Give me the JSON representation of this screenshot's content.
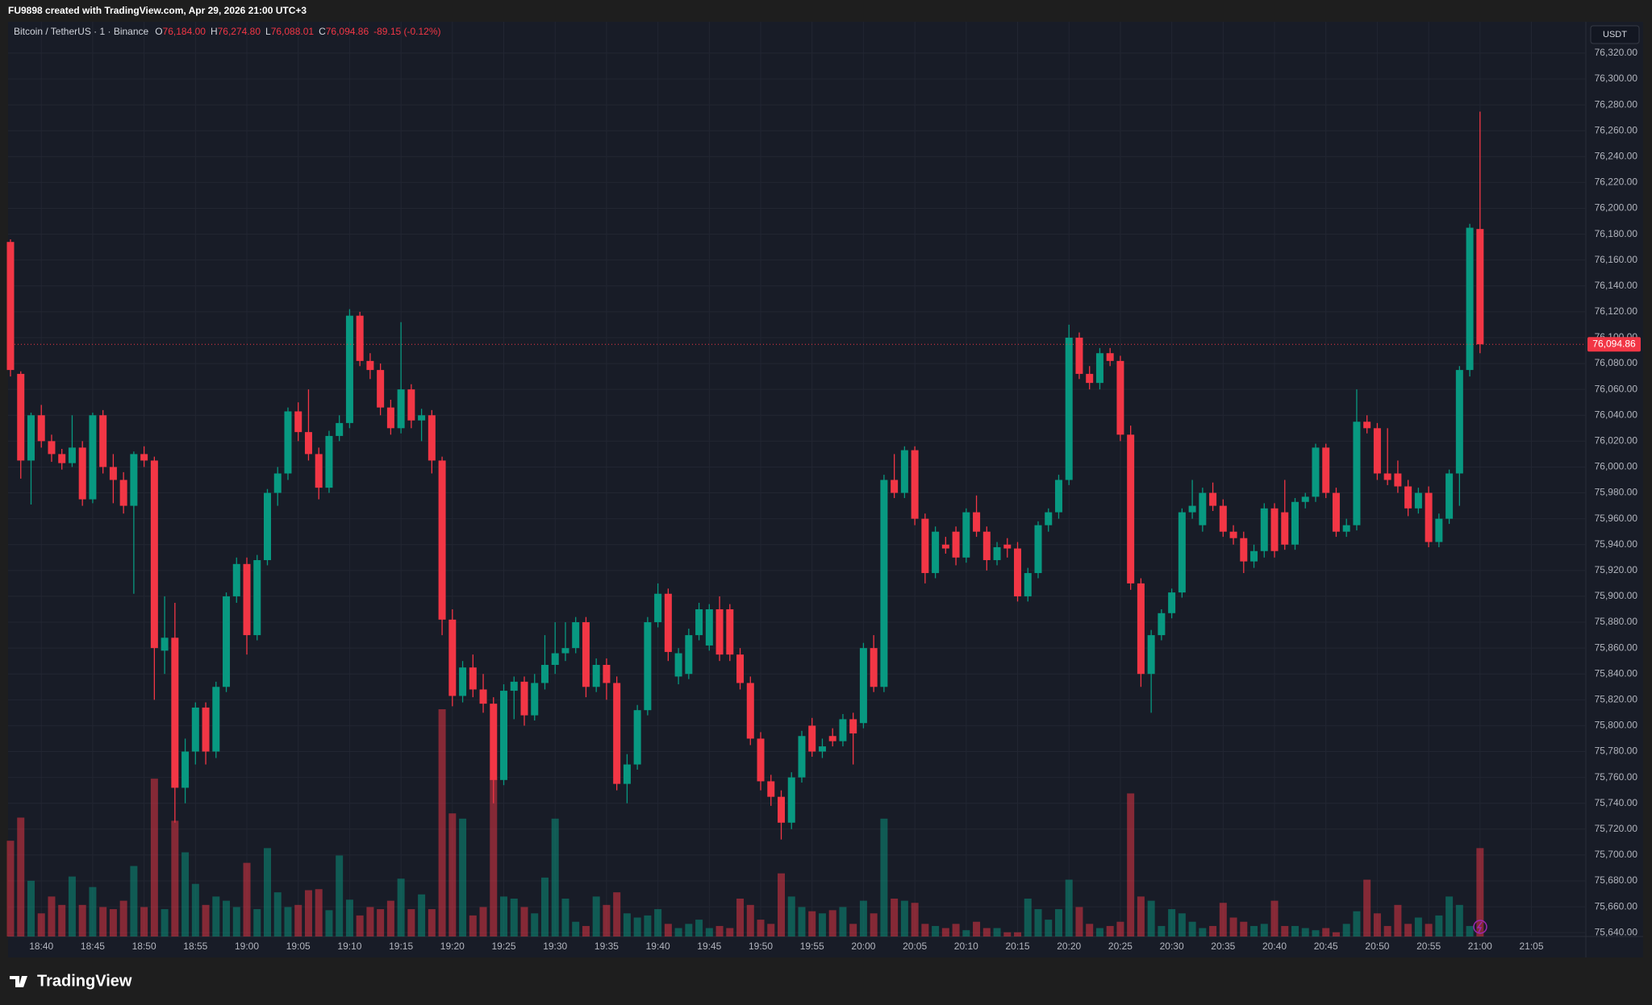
{
  "header": "FU9898 created with TradingView.com, Apr 29, 2026 21:00 UTC+3",
  "footer": "TradingView",
  "chart_data": {
    "type": "candlestick",
    "currency": "USDT",
    "legend": {
      "symbol": "Bitcoin / TetherUS · 1 · Binance",
      "items": [
        {
          "key": "O",
          "value": "76,184.00"
        },
        {
          "key": "H",
          "value": "76,274.80"
        },
        {
          "key": "L",
          "value": "76,088.01"
        },
        {
          "key": "C",
          "value": "76,094.86"
        }
      ],
      "change": "-89.15 (-0.12%)"
    },
    "last_price_label": "76,094.86",
    "up_color": "#089981",
    "down_color": "#f23645",
    "grid": true,
    "x": [
      "18:37",
      "18:38",
      "18:39",
      "18:40",
      "18:41",
      "18:42",
      "18:43",
      "18:44",
      "18:45",
      "18:46",
      "18:47",
      "18:48",
      "18:49",
      "18:50",
      "18:51",
      "18:52",
      "18:53",
      "18:54",
      "18:55",
      "18:56",
      "18:57",
      "18:58",
      "18:59",
      "19:00",
      "19:01",
      "19:02",
      "19:03",
      "19:04",
      "19:05",
      "19:06",
      "19:07",
      "19:08",
      "19:09",
      "19:10",
      "19:11",
      "19:12",
      "19:13",
      "19:14",
      "19:15",
      "19:16",
      "19:17",
      "19:18",
      "19:19",
      "19:20",
      "19:21",
      "19:22",
      "19:23",
      "19:24",
      "19:25",
      "19:26",
      "19:27",
      "19:28",
      "19:29",
      "19:30",
      "19:31",
      "19:32",
      "19:33",
      "19:34",
      "19:35",
      "19:36",
      "19:37",
      "19:38",
      "19:39",
      "19:40",
      "19:41",
      "19:42",
      "19:43",
      "19:44",
      "19:45",
      "19:46",
      "19:47",
      "19:48",
      "19:49",
      "19:50",
      "19:51",
      "19:52",
      "19:53",
      "19:54",
      "19:55",
      "19:56",
      "19:57",
      "19:58",
      "19:59",
      "20:00",
      "20:01",
      "20:02",
      "20:03",
      "20:04",
      "20:05",
      "20:06",
      "20:07",
      "20:08",
      "20:09",
      "20:10",
      "20:11",
      "20:12",
      "20:13",
      "20:14",
      "20:15",
      "20:16",
      "20:17",
      "20:18",
      "20:19",
      "20:20",
      "20:21",
      "20:22",
      "20:23",
      "20:24",
      "20:25",
      "20:26",
      "20:27",
      "20:28",
      "20:29",
      "20:30",
      "20:31",
      "20:32",
      "20:33",
      "20:34",
      "20:35",
      "20:36",
      "20:37",
      "20:38",
      "20:39",
      "20:40",
      "20:41",
      "20:42",
      "20:43",
      "20:44",
      "20:45",
      "20:46",
      "20:47",
      "20:48",
      "20:49",
      "20:50",
      "20:51",
      "20:52",
      "20:53",
      "20:54",
      "20:55",
      "20:56",
      "20:57",
      "20:58",
      "20:59",
      "21:00"
    ],
    "open": [
      76174,
      76072,
      76005,
      76040,
      76020,
      76010,
      76003,
      76015,
      75975,
      76040,
      76000,
      75990,
      75970,
      76010,
      76005,
      75858,
      75868,
      75752,
      75780,
      75814,
      75780,
      75830,
      75900,
      75925,
      75870,
      75928,
      75980,
      75995,
      76043,
      76027,
      76010,
      75984,
      76024,
      76034,
      76117,
      76082,
      76075,
      76046,
      76030,
      76060,
      76036,
      76040,
      76005,
      75882,
      75823,
      75845,
      75828,
      75817,
      75758,
      75827,
      75834,
      75808,
      75833,
      75847,
      75856,
      75860,
      75880,
      75830,
      75847,
      75833,
      75755,
      75770,
      75812,
      75880,
      75902,
      75838,
      75840,
      75870,
      75862,
      75890,
      75890,
      75855,
      75833,
      75790,
      75757,
      75745,
      75725,
      75760,
      75800,
      75780,
      75792,
      75788,
      75805,
      75802,
      75860,
      75830,
      75990,
      75980,
      76013,
      75960,
      75918,
      75940,
      75950,
      75930,
      75965,
      75950,
      75928,
      75940,
      75937,
      75900,
      75918,
      75955,
      75965,
      75990,
      76100,
      76072,
      76065,
      76088,
      76082,
      76025,
      75910,
      75840,
      75870,
      75887,
      75903,
      75965,
      75955,
      75980,
      75970,
      75950,
      75945,
      75927,
      75935,
      75968,
      75965,
      75940,
      75973,
      75977,
      76015,
      75980,
      75950,
      75955,
      76035,
      76030,
      75995,
      75995,
      75985,
      75968,
      75980,
      75942,
      75960,
      75995,
      76075,
      76184.0
    ],
    "high": [
      76176,
      76074,
      76042,
      76048,
      76025,
      76014,
      76040,
      76020,
      76042,
      76044,
      76010,
      75996,
      76012,
      76016,
      76008,
      75900,
      75895,
      75790,
      75818,
      75818,
      75834,
      75903,
      75930,
      75930,
      75932,
      75983,
      76000,
      76046,
      76050,
      76060,
      76015,
      76028,
      76040,
      76122,
      76120,
      76088,
      76080,
      76052,
      76112,
      76064,
      76045,
      76044,
      76008,
      75890,
      75850,
      75855,
      75840,
      75822,
      75832,
      75838,
      75838,
      75840,
      75870,
      75880,
      75880,
      75884,
      75884,
      75852,
      75852,
      75838,
      75778,
      75816,
      75884,
      75910,
      75906,
      75860,
      75875,
      75895,
      75894,
      75900,
      75894,
      75860,
      75838,
      75795,
      75762,
      75750,
      75764,
      75796,
      75806,
      75790,
      75798,
      75809,
      75810,
      75864,
      75870,
      75994,
      76010,
      76016,
      76016,
      75964,
      75954,
      75946,
      75954,
      75968,
      75978,
      75954,
      75942,
      75945,
      75942,
      75922,
      75958,
      75968,
      75994,
      76110,
      76104,
      76078,
      76092,
      76092,
      76086,
      76032,
      75914,
      75874,
      75890,
      75906,
      75968,
      75990,
      75984,
      75988,
      75975,
      75955,
      75950,
      75940,
      75972,
      75972,
      75990,
      75976,
      75980,
      76018,
      76018,
      75984,
      75960,
      76060,
      76040,
      76034,
      76030,
      76005,
      75990,
      75984,
      75985,
      75964,
      75998,
      76078,
      76188,
      76274.8
    ],
    "low": [
      76070,
      75991,
      75971,
      76015,
      76004,
      75998,
      76000,
      75970,
      75972,
      75995,
      75972,
      75964,
      75902,
      76000,
      75820,
      75840,
      75725,
      75740,
      75770,
      75770,
      75775,
      75826,
      75895,
      75855,
      75866,
      75924,
      75970,
      75990,
      76020,
      76005,
      75975,
      75980,
      76020,
      76030,
      76078,
      76068,
      76040,
      76025,
      76026,
      76030,
      76020,
      75995,
      75870,
      75815,
      75818,
      75822,
      75810,
      75740,
      75754,
      75805,
      75800,
      75804,
      75828,
      75840,
      75850,
      75856,
      75822,
      75826,
      75820,
      75750,
      75740,
      75766,
      75808,
      75876,
      75850,
      75832,
      75836,
      75866,
      75858,
      75850,
      75850,
      75828,
      75785,
      75750,
      75738,
      75712,
      75720,
      75756,
      75776,
      75775,
      75784,
      75784,
      75770,
      75798,
      75826,
      75826,
      75976,
      75976,
      75955,
      75910,
      75914,
      75933,
      75924,
      75926,
      75946,
      75920,
      75924,
      75930,
      75896,
      75896,
      75914,
      75950,
      75960,
      75986,
      76068,
      76060,
      76060,
      76078,
      76020,
      75905,
      75830,
      75810,
      75866,
      75883,
      75899,
      75960,
      75950,
      75966,
      75946,
      75940,
      75918,
      75922,
      75930,
      75930,
      75936,
      75936,
      75968,
      75973,
      75976,
      75946,
      75946,
      75951,
      76026,
      75990,
      75986,
      75980,
      75962,
      75964,
      75938,
      75938,
      75956,
      75970,
      76070,
      76088.01
    ],
    "close": [
      76075,
      76005,
      76040,
      76020,
      76010,
      76003,
      76015,
      75975,
      76040,
      76000,
      75990,
      75970,
      76010,
      76005,
      75860,
      75868,
      75752,
      75780,
      75814,
      75780,
      75830,
      75900,
      75925,
      75870,
      75928,
      75980,
      75995,
      76043,
      76027,
      76010,
      75984,
      76024,
      76034,
      76117,
      76082,
      76075,
      76046,
      76030,
      76060,
      76036,
      76040,
      76005,
      75882,
      75823,
      75845,
      75828,
      75817,
      75758,
      75827,
      75834,
      75808,
      75833,
      75847,
      75856,
      75860,
      75880,
      75830,
      75847,
      75833,
      75755,
      75770,
      75812,
      75880,
      75902,
      75857,
      75856,
      75870,
      75890,
      75890,
      75855,
      75855,
      75833,
      75790,
      75757,
      75745,
      75725,
      75760,
      75792,
      75780,
      75784,
      75788,
      75805,
      75794,
      75860,
      75830,
      75990,
      75980,
      76013,
      75960,
      75918,
      75950,
      75937,
      75930,
      75965,
      75950,
      75928,
      75938,
      75937,
      75900,
      75918,
      75955,
      75965,
      75990,
      76100,
      76072,
      76065,
      76088,
      76082,
      76025,
      75910,
      75840,
      75870,
      75887,
      75903,
      75965,
      75970,
      75980,
      75970,
      75950,
      75945,
      75927,
      75935,
      75968,
      75935,
      75940,
      75973,
      75977,
      76015,
      75980,
      75950,
      75955,
      76035,
      76030,
      75995,
      75990,
      75985,
      75968,
      75980,
      75942,
      75960,
      75995,
      76075,
      76185,
      76094.86
    ],
    "volume": [
      91,
      113,
      53,
      22,
      38,
      30,
      57,
      30,
      47,
      28,
      26,
      34,
      67,
      28,
      150,
      26,
      110,
      80,
      50,
      30,
      38,
      34,
      28,
      70,
      26,
      84,
      42,
      28,
      30,
      44,
      45,
      25,
      77,
      35,
      20,
      28,
      26,
      34,
      55,
      26,
      40,
      26,
      216,
      117,
      112,
      20,
      28,
      150,
      38,
      36,
      28,
      22,
      56,
      112,
      36,
      14,
      10,
      38,
      30,
      42,
      22,
      18,
      20,
      26,
      12,
      8,
      12,
      16,
      8,
      10,
      8,
      36,
      30,
      16,
      12,
      60,
      38,
      28,
      24,
      22,
      25,
      28,
      12,
      34,
      22,
      112,
      36,
      34,
      32,
      12,
      10,
      8,
      12,
      6,
      14,
      8,
      8,
      4,
      4,
      36,
      26,
      16,
      26,
      54,
      28,
      12,
      8,
      10,
      14,
      136,
      38,
      34,
      10,
      26,
      22,
      14,
      8,
      10,
      32,
      18,
      14,
      10,
      12,
      34,
      10,
      10,
      8,
      6,
      8,
      4,
      12,
      24,
      54,
      22,
      10,
      30,
      12,
      18,
      12,
      20,
      38,
      30,
      10,
      84
    ],
    "xticks": [
      "18:40",
      "18:45",
      "18:50",
      "18:55",
      "19:00",
      "19:05",
      "19:10",
      "19:15",
      "19:20",
      "19:25",
      "19:30",
      "19:35",
      "19:40",
      "19:45",
      "19:50",
      "19:55",
      "20:00",
      "20:05",
      "20:10",
      "20:15",
      "20:20",
      "20:25",
      "20:30",
      "20:35",
      "20:40",
      "20:45",
      "20:50",
      "20:55",
      "21:00",
      "21:05"
    ],
    "ylim": [
      75637,
      76343
    ],
    "yticks": [
      {
        "value": 75640,
        "label": "75,640.00"
      },
      {
        "value": 75660,
        "label": "75,660.00"
      },
      {
        "value": 75680,
        "label": "75,680.00"
      },
      {
        "value": 75700,
        "label": "75,700.00"
      },
      {
        "value": 75720,
        "label": "75,720.00"
      },
      {
        "value": 75740,
        "label": "75,740.00"
      },
      {
        "value": 75760,
        "label": "75,760.00"
      },
      {
        "value": 75780,
        "label": "75,780.00"
      },
      {
        "value": 75800,
        "label": "75,800.00"
      },
      {
        "value": 75820,
        "label": "75,820.00"
      },
      {
        "value": 75840,
        "label": "75,840.00"
      },
      {
        "value": 75860,
        "label": "75,860.00"
      },
      {
        "value": 75880,
        "label": "75,880.00"
      },
      {
        "value": 75900,
        "label": "75,900.00"
      },
      {
        "value": 75920,
        "label": "75,920.00"
      },
      {
        "value": 75940,
        "label": "75,940.00"
      },
      {
        "value": 75960,
        "label": "75,960.00"
      },
      {
        "value": 75980,
        "label": "75,980.00"
      },
      {
        "value": 76000,
        "label": "76,000.00"
      },
      {
        "value": 76020,
        "label": "76,020.00"
      },
      {
        "value": 76040,
        "label": "76,040.00"
      },
      {
        "value": 76060,
        "label": "76,060.00"
      },
      {
        "value": 76080,
        "label": "76,080.00"
      },
      {
        "value": 76100,
        "label": "76,100.00"
      },
      {
        "value": 76120,
        "label": "76,120.00"
      },
      {
        "value": 76140,
        "label": "76,140.00"
      },
      {
        "value": 76160,
        "label": "76,160.00"
      },
      {
        "value": 76180,
        "label": "76,180.00"
      },
      {
        "value": 76200,
        "label": "76,200.00"
      },
      {
        "value": 76220,
        "label": "76,220.00"
      },
      {
        "value": 76240,
        "label": "76,240.00"
      },
      {
        "value": 76260,
        "label": "76,260.00"
      },
      {
        "value": 76280,
        "label": "76,280.00"
      },
      {
        "value": 76300,
        "label": "76,300.00"
      },
      {
        "value": 76320,
        "label": "76,320.00"
      }
    ]
  }
}
